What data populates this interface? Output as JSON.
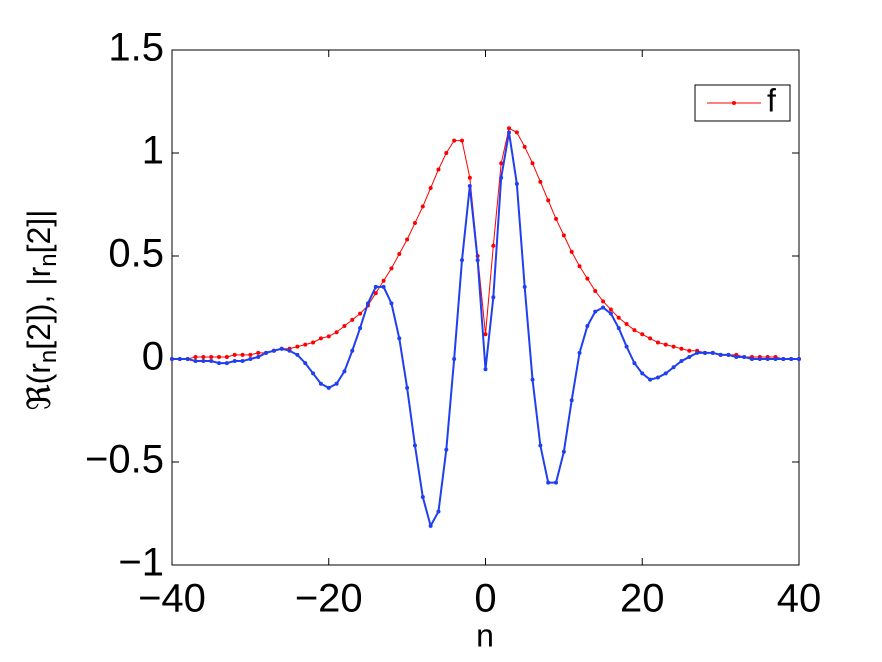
{
  "chart_data": {
    "type": "line",
    "xlabel": "n",
    "ylabel": [
      "ℜ(r",
      "n",
      "[2]), |r",
      "n",
      "[2]|"
    ],
    "x": [
      -40,
      -39,
      -38,
      -37,
      -36,
      -35,
      -34,
      -33,
      -32,
      -31,
      -30,
      -29,
      -28,
      -27,
      -26,
      -25,
      -24,
      -23,
      -22,
      -21,
      -20,
      -19,
      -18,
      -17,
      -16,
      -15,
      -14,
      -13,
      -12,
      -11,
      -10,
      -9,
      -8,
      -7,
      -6,
      -5,
      -4,
      -3,
      -2,
      -1,
      0,
      1,
      2,
      3,
      4,
      5,
      6,
      7,
      8,
      9,
      10,
      11,
      12,
      13,
      14,
      15,
      16,
      17,
      18,
      19,
      20,
      21,
      22,
      23,
      24,
      25,
      26,
      27,
      28,
      29,
      30,
      31,
      32,
      33,
      34,
      35,
      36,
      37,
      38,
      39,
      40
    ],
    "series": [
      {
        "name": "f",
        "color": "#ff0000",
        "values": [
          0.0,
          0.0,
          0.0,
          0.01,
          0.01,
          0.01,
          0.01,
          0.01,
          0.02,
          0.02,
          0.02,
          0.03,
          0.03,
          0.04,
          0.05,
          0.05,
          0.06,
          0.07,
          0.08,
          0.1,
          0.11,
          0.13,
          0.16,
          0.19,
          0.22,
          0.26,
          0.32,
          0.38,
          0.44,
          0.51,
          0.58,
          0.66,
          0.74,
          0.83,
          0.92,
          1.0,
          1.06,
          1.06,
          0.88,
          0.5,
          0.12,
          0.55,
          0.95,
          1.12,
          1.1,
          1.03,
          0.95,
          0.86,
          0.77,
          0.68,
          0.6,
          0.52,
          0.45,
          0.39,
          0.33,
          0.28,
          0.24,
          0.2,
          0.17,
          0.14,
          0.12,
          0.1,
          0.08,
          0.07,
          0.06,
          0.05,
          0.04,
          0.04,
          0.03,
          0.03,
          0.02,
          0.02,
          0.02,
          0.01,
          0.01,
          0.01,
          0.01,
          0.01,
          0.0,
          0.0,
          0.0
        ]
      },
      {
        "color": "#1f3ff0",
        "values": [
          0.0,
          0.0,
          0.0,
          -0.01,
          -0.01,
          -0.01,
          -0.02,
          -0.02,
          -0.01,
          -0.01,
          0.0,
          0.01,
          0.03,
          0.04,
          0.05,
          0.04,
          0.02,
          -0.02,
          -0.07,
          -0.12,
          -0.14,
          -0.12,
          -0.06,
          0.04,
          0.15,
          0.27,
          0.35,
          0.35,
          0.27,
          0.1,
          -0.14,
          -0.42,
          -0.67,
          -0.81,
          -0.74,
          -0.44,
          0.0,
          0.48,
          0.84,
          0.48,
          -0.05,
          0.3,
          0.88,
          1.1,
          0.85,
          0.35,
          -0.1,
          -0.42,
          -0.6,
          -0.6,
          -0.45,
          -0.2,
          0.03,
          0.16,
          0.23,
          0.25,
          0.22,
          0.15,
          0.06,
          -0.02,
          -0.07,
          -0.1,
          -0.09,
          -0.07,
          -0.04,
          -0.01,
          0.01,
          0.03,
          0.03,
          0.03,
          0.02,
          0.02,
          0.01,
          0.01,
          0.0,
          0.0,
          0.0,
          0.0,
          0.0,
          0.0,
          0.0
        ]
      }
    ],
    "xlim": [
      -40,
      40
    ],
    "xticks": [
      {
        "value": -40,
        "label": "−40"
      },
      {
        "value": -20,
        "label": "−20"
      },
      0,
      20,
      40
    ],
    "ylim": [
      -1,
      1.5
    ],
    "yticks": [
      {
        "value": -1,
        "label": "−1"
      },
      {
        "value": -0.5,
        "label": "−0.5"
      },
      0,
      0.5,
      1,
      1.5
    ],
    "legend": "top-right"
  }
}
